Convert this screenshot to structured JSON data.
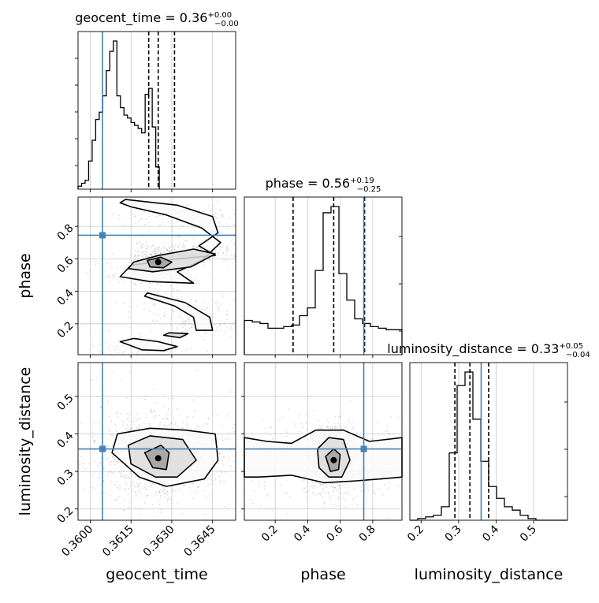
{
  "chart_data": {
    "type": "corner",
    "colors": {
      "truth": "#4682b4",
      "hist": "#000000",
      "scatter": "#9a9a9a",
      "grid": "#c8c8c8"
    },
    "parameters": [
      {
        "name": "geocent_time",
        "axis_label": "geocent_time",
        "title_prefix": "geocent_time = 0.36",
        "title_plus": "+0.00",
        "title_minus": "−0.00",
        "range": [
          0.35955,
          0.36535
        ],
        "ticks": [
          0.36,
          0.3615,
          0.363,
          0.3645
        ],
        "tick_labels": [
          "0.3600",
          "0.3615",
          "0.3630",
          "0.3645"
        ],
        "truth": 0.36045,
        "quantiles": [
          0.36215,
          0.3625,
          0.3631
        ],
        "hist_bin_width": 0.00013,
        "hist_heights": [
          0.02,
          0.04,
          0.06,
          0.19,
          0.33,
          0.47,
          0.52,
          0.63,
          0.8,
          0.93,
          1.0,
          0.63,
          0.55,
          0.5,
          0.48,
          0.45,
          0.43,
          0.41,
          0.38,
          0.64,
          0.68,
          0.42,
          0.15
        ]
      },
      {
        "name": "phase",
        "axis_label": "phase",
        "title_prefix": "phase = 0.56",
        "title_plus": "+0.19",
        "title_minus": "−0.25",
        "range": [
          0.01,
          0.98
        ],
        "ticks": [
          0.2,
          0.4,
          0.6,
          0.8
        ],
        "tick_labels": [
          "0.2",
          "0.4",
          "0.6",
          "0.8"
        ],
        "truth": 0.745,
        "quantiles": [
          0.31,
          0.56,
          0.75
        ],
        "hist_bin_width": 0.0485,
        "hist_heights": [
          0.22,
          0.21,
          0.2,
          0.17,
          0.17,
          0.18,
          0.19,
          0.25,
          0.3,
          0.54,
          0.91,
          0.95,
          0.52,
          0.35,
          0.23,
          0.2,
          0.18,
          0.17,
          0.16,
          0.16
        ]
      },
      {
        "name": "luminosity_distance",
        "axis_label": "luminosity_distance",
        "title_prefix": "luminosity_distance = 0.33",
        "title_plus": "+0.05",
        "title_minus": "−0.04",
        "range": [
          0.17,
          0.59
        ],
        "ticks": [
          0.2,
          0.3,
          0.4,
          0.5
        ],
        "tick_labels": [
          "0.2",
          "0.3",
          "0.4",
          "0.5"
        ],
        "truth": 0.36,
        "quantiles": [
          0.29,
          0.33,
          0.38
        ],
        "hist_bin_width": 0.021,
        "hist_heights": [
          0.0,
          0.01,
          0.02,
          0.03,
          0.08,
          0.4,
          0.8,
          0.88,
          0.6,
          0.35,
          0.2,
          0.13,
          0.08,
          0.06,
          0.03,
          0.01,
          0.0,
          0.0,
          0.0,
          0.0
        ]
      }
    ],
    "pairs": [
      {
        "x_param": "geocent_time",
        "y_param": "phase",
        "density_blobs": [
          {
            "x": 0.3625,
            "y": 0.58,
            "sx": 0.00025,
            "sy": 0.035,
            "w": 1.0
          },
          {
            "x": 0.3637,
            "y": 0.63,
            "sx": 0.0007,
            "sy": 0.03,
            "w": 0.55
          },
          {
            "x": 0.3619,
            "y": 0.5,
            "sx": 0.0005,
            "sy": 0.025,
            "w": 0.45
          },
          {
            "x": 0.3638,
            "y": 0.86,
            "sx": 0.0008,
            "sy": 0.025,
            "w": 0.35
          },
          {
            "x": 0.3636,
            "y": 0.29,
            "sx": 0.0007,
            "sy": 0.03,
            "w": 0.3
          },
          {
            "x": 0.3641,
            "y": 0.19,
            "sx": 0.0004,
            "sy": 0.02,
            "w": 0.25
          },
          {
            "x": 0.3618,
            "y": 0.06,
            "sx": 0.0006,
            "sy": 0.025,
            "w": 0.25
          }
        ],
        "contours": [
          {
            "level": "outer",
            "points": [
              [
                0.3613,
                0.965
              ],
              [
                0.3632,
                0.93
              ],
              [
                0.3645,
                0.86
              ],
              [
                0.3647,
                0.76
              ],
              [
                0.364,
                0.68
              ],
              [
                0.3646,
                0.62
              ],
              [
                0.3632,
                0.6
              ],
              [
                0.3615,
                0.56
              ],
              [
                0.3611,
                0.49
              ],
              [
                0.3622,
                0.46
              ],
              [
                0.3638,
                0.45
              ],
              [
                0.3632,
                0.52
              ],
              [
                0.3641,
                0.59
              ],
              [
                0.3648,
                0.7
              ],
              [
                0.3641,
                0.79
              ],
              [
                0.3628,
                0.87
              ],
              [
                0.3615,
                0.92
              ],
              [
                0.3611,
                0.945
              ]
            ]
          },
          {
            "level": "mid",
            "points": [
              [
                0.3614,
                0.54
              ],
              [
                0.3623,
                0.52
              ],
              [
                0.3637,
                0.55
              ],
              [
                0.3646,
                0.63
              ],
              [
                0.3638,
                0.66
              ],
              [
                0.3625,
                0.62
              ],
              [
                0.3616,
                0.58
              ]
            ]
          },
          {
            "level": "inner",
            "points": [
              [
                0.3622,
                0.55
              ],
              [
                0.3627,
                0.545
              ],
              [
                0.363,
                0.58
              ],
              [
                0.3626,
                0.61
              ],
              [
                0.3621,
                0.59
              ]
            ]
          },
          {
            "level": "outer",
            "points": [
              [
                0.3621,
                0.39
              ],
              [
                0.3635,
                0.33
              ],
              [
                0.3644,
                0.24
              ],
              [
                0.3645,
                0.16
              ],
              [
                0.3639,
                0.16
              ],
              [
                0.3638,
                0.24
              ],
              [
                0.3631,
                0.31
              ],
              [
                0.362,
                0.37
              ]
            ]
          },
          {
            "level": "outer",
            "points": [
              [
                0.3611,
                0.09
              ],
              [
                0.3619,
                0.04
              ],
              [
                0.3627,
                0.035
              ],
              [
                0.3632,
                0.06
              ],
              [
                0.3625,
                0.09
              ],
              [
                0.3616,
                0.11
              ]
            ]
          },
          {
            "level": "mid",
            "points": [
              [
                0.3627,
                0.13
              ],
              [
                0.3633,
                0.115
              ],
              [
                0.3636,
                0.14
              ],
              [
                0.3629,
                0.145
              ]
            ]
          }
        ]
      },
      {
        "x_param": "geocent_time",
        "y_param": "luminosity_distance",
        "density_blobs": [
          {
            "x": 0.3625,
            "y": 0.335,
            "sx": 0.0005,
            "sy": 0.03,
            "w": 1.0
          },
          {
            "x": 0.3634,
            "y": 0.34,
            "sx": 0.0009,
            "sy": 0.04,
            "w": 0.55
          },
          {
            "x": 0.3612,
            "y": 0.36,
            "sx": 0.0008,
            "sy": 0.05,
            "w": 0.4
          }
        ],
        "contours": [
          {
            "level": "outer",
            "points": [
              [
                0.361,
                0.4
              ],
              [
                0.3622,
                0.415
              ],
              [
                0.3635,
                0.41
              ],
              [
                0.3646,
                0.4
              ],
              [
                0.3647,
                0.33
              ],
              [
                0.3642,
                0.28
              ],
              [
                0.3628,
                0.26
              ],
              [
                0.3618,
                0.285
              ],
              [
                0.3608,
                0.35
              ]
            ]
          },
          {
            "level": "mid",
            "points": [
              [
                0.3614,
                0.37
              ],
              [
                0.3622,
                0.395
              ],
              [
                0.3634,
                0.385
              ],
              [
                0.3639,
                0.33
              ],
              [
                0.3632,
                0.285
              ],
              [
                0.3624,
                0.285
              ],
              [
                0.3615,
                0.32
              ]
            ]
          },
          {
            "level": "inner",
            "points": [
              [
                0.362,
                0.35
              ],
              [
                0.3626,
                0.37
              ],
              [
                0.3629,
                0.35
              ],
              [
                0.3628,
                0.305
              ],
              [
                0.3623,
                0.31
              ]
            ]
          }
        ]
      },
      {
        "x_param": "phase",
        "y_param": "luminosity_distance",
        "density_blobs": [
          {
            "x": 0.56,
            "y": 0.33,
            "sx": 0.045,
            "sy": 0.03,
            "w": 1.0
          },
          {
            "x": 0.5,
            "y": 0.335,
            "sx": 0.35,
            "sy": 0.04,
            "w": 0.45
          }
        ],
        "contours": [
          {
            "level": "outer",
            "points": [
              [
                0.01,
                0.39
              ],
              [
                0.15,
                0.38
              ],
              [
                0.3,
                0.375
              ],
              [
                0.45,
                0.41
              ],
              [
                0.62,
                0.41
              ],
              [
                0.78,
                0.38
              ],
              [
                0.98,
                0.39
              ],
              [
                0.98,
                0.285
              ],
              [
                0.85,
                0.28
              ],
              [
                0.7,
                0.275
              ],
              [
                0.5,
                0.27
              ],
              [
                0.3,
                0.29
              ],
              [
                0.1,
                0.285
              ],
              [
                0.01,
                0.285
              ]
            ]
          },
          {
            "level": "mid",
            "points": [
              [
                0.46,
                0.36
              ],
              [
                0.53,
                0.39
              ],
              [
                0.62,
                0.385
              ],
              [
                0.66,
                0.33
              ],
              [
                0.61,
                0.285
              ],
              [
                0.53,
                0.285
              ],
              [
                0.47,
                0.31
              ]
            ]
          },
          {
            "level": "inner",
            "points": [
              [
                0.51,
                0.34
              ],
              [
                0.56,
                0.36
              ],
              [
                0.6,
                0.345
              ],
              [
                0.59,
                0.305
              ],
              [
                0.54,
                0.3
              ]
            ]
          }
        ]
      }
    ]
  }
}
